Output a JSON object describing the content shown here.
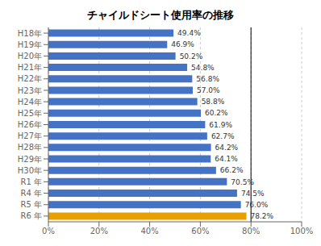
{
  "chart_data": {
    "type": "bar",
    "title": "チャイルドシート使用率の推移",
    "orientation": "horizontal",
    "categories": [
      "H18年",
      "H19年",
      "H20年",
      "H21年",
      "H22年",
      "H23年",
      "H24年",
      "H25年",
      "H26年",
      "H27年",
      "H28年",
      "H29年",
      "H30年",
      "R1 年",
      "R4 年",
      "R5 年",
      "R6 年"
    ],
    "values": [
      49.4,
      46.9,
      50.2,
      54.8,
      56.8,
      57.0,
      58.8,
      60.2,
      61.9,
      62.7,
      64.2,
      64.1,
      66.2,
      70.5,
      74.5,
      76.0,
      78.2
    ],
    "value_labels": [
      "49.4%",
      "46.9%",
      "50.2%",
      "54.8%",
      "56.8%",
      "57.0%",
      "58.8%",
      "60.2%",
      "61.9%",
      "62.7%",
      "64.2%",
      "64.1%",
      "66.2%",
      "70.5%",
      "74.5%",
      "76.0%",
      "78.2%"
    ],
    "data_labels": true,
    "colors": [
      "#4472c4",
      "#4472c4",
      "#4472c4",
      "#4472c4",
      "#4472c4",
      "#4472c4",
      "#4472c4",
      "#4472c4",
      "#4472c4",
      "#4472c4",
      "#4472c4",
      "#4472c4",
      "#4472c4",
      "#4472c4",
      "#4472c4",
      "#4472c4",
      "#e8a000"
    ],
    "xlim": [
      0,
      100
    ],
    "xticks": [
      {
        "value": 0,
        "label": "0%"
      },
      {
        "value": 20,
        "label": "20%"
      },
      {
        "value": 40,
        "label": "40%"
      },
      {
        "value": 60,
        "label": "60%"
      },
      {
        "value": 80,
        "label": "80%"
      },
      {
        "value": 100,
        "label": "100%"
      }
    ],
    "vline_x": 80,
    "grid": true
  }
}
